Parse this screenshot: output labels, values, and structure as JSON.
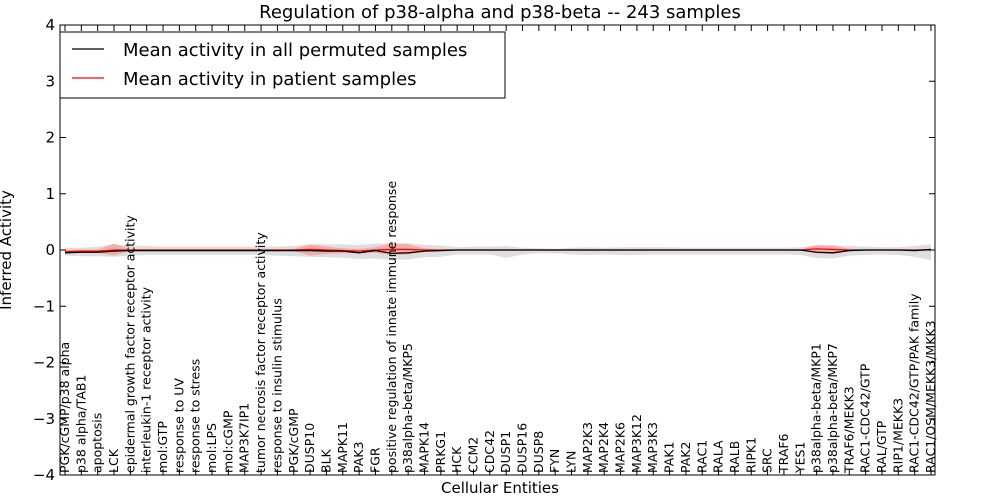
{
  "chart_data": {
    "type": "line",
    "title": "Regulation of p38-alpha and p38-beta -- 243 samples",
    "xlabel": "Cellular Entities",
    "ylabel": "Inferred Activity",
    "ylim": [
      -4,
      4
    ],
    "yticks": [
      -4,
      -3,
      -2,
      -1,
      0,
      1,
      2,
      3,
      4
    ],
    "ytick_labels": [
      "−4",
      "−3",
      "−2",
      "−1",
      "0",
      "1",
      "2",
      "3",
      "4"
    ],
    "grid": false,
    "legend_position": "top-left",
    "categories": [
      "PGK/cGMP/p38 alpha",
      "p38 alpha/TAB1",
      "apoptosis",
      "LCK",
      "epidermal growth factor receptor activity",
      "interleukin-1 receptor activity",
      "mol:GTP",
      "response to UV",
      "response to stress",
      "mol:LPS",
      "mol:cGMP",
      "MAP3K7IP1",
      "tumor necrosis factor receptor activity",
      "response to insulin stimulus",
      "PGK/cGMP",
      "DUSP10",
      "BLK",
      "MAPK11",
      "PAK3",
      "FGR",
      "positive regulation of innate immune response",
      "p38alpha-beta/MKP5",
      "MAPK14",
      "PRKG1",
      "HCK",
      "CCM2",
      "CDC42",
      "DUSP1",
      "DUSP16",
      "DUSP8",
      "FYN",
      "LYN",
      "MAP2K3",
      "MAP2K4",
      "MAP2K6",
      "MAP3K12",
      "MAP3K3",
      "PAK1",
      "PAK2",
      "RAC1",
      "RALA",
      "RALB",
      "RIPK1",
      "SRC",
      "TRAF6",
      "YES1",
      "p38alpha-beta/MKP1",
      "p38alpha-beta/MKP7",
      "TRAF6/MEKK3",
      "RAC1-CDC42/GTP",
      "RAL/GTP",
      "RIP1/MEKK3",
      "RAC1-CDC42/GTP/PAK family",
      "RAC1/OSM/MEKK3/MKK3"
    ],
    "series": [
      {
        "name": "Mean activity in all permuted samples",
        "color": "#000000",
        "band_color": "#d8d8d8",
        "values": [
          -0.05,
          -0.04,
          -0.04,
          -0.02,
          -0.01,
          -0.01,
          -0.01,
          -0.01,
          -0.01,
          -0.01,
          -0.01,
          -0.01,
          -0.01,
          -0.01,
          -0.01,
          -0.01,
          -0.02,
          -0.02,
          -0.05,
          -0.01,
          -0.06,
          -0.05,
          -0.02,
          -0.01,
          0,
          0,
          0,
          0,
          0,
          0,
          0,
          0,
          0,
          0,
          0,
          0,
          0,
          0,
          0,
          0,
          0,
          0,
          0,
          0,
          0,
          0,
          -0.04,
          -0.05,
          -0.01,
          0,
          0,
          0,
          -0.01,
          0.01
        ],
        "upper": [
          0.04,
          0.04,
          0.06,
          0.1,
          0.08,
          0.07,
          0.06,
          0.06,
          0.06,
          0.06,
          0.06,
          0.06,
          0.06,
          0.06,
          0.07,
          0.1,
          0.1,
          0.1,
          0.09,
          0.11,
          0.12,
          0.12,
          0.09,
          0.08,
          0.05,
          0.06,
          0.06,
          0.07,
          0.04,
          0.03,
          0.02,
          0.04,
          0.05,
          0.04,
          0.05,
          0.05,
          0.05,
          0.05,
          0.04,
          0.04,
          0.04,
          0.04,
          0.04,
          0.04,
          0.04,
          0.05,
          0.08,
          0.08,
          0.07,
          0.06,
          0.05,
          0.05,
          0.07,
          0.1
        ],
        "lower": [
          -0.1,
          -0.11,
          -0.11,
          -0.12,
          -0.1,
          -0.09,
          -0.09,
          -0.09,
          -0.09,
          -0.09,
          -0.09,
          -0.09,
          -0.09,
          -0.1,
          -0.11,
          -0.12,
          -0.13,
          -0.14,
          -0.16,
          -0.15,
          -0.18,
          -0.17,
          -0.13,
          -0.12,
          -0.08,
          -0.08,
          -0.08,
          -0.14,
          -0.08,
          -0.06,
          -0.06,
          -0.08,
          -0.09,
          -0.08,
          -0.09,
          -0.09,
          -0.08,
          -0.08,
          -0.08,
          -0.08,
          -0.08,
          -0.08,
          -0.08,
          -0.08,
          -0.08,
          -0.09,
          -0.14,
          -0.15,
          -0.1,
          -0.09,
          -0.08,
          -0.09,
          -0.12,
          -0.18
        ]
      },
      {
        "name": "Mean activity in patient samples",
        "color": "#ff0000",
        "band_color": "#f4a3a3",
        "values": [
          -0.03,
          -0.02,
          -0.02,
          0,
          0,
          0,
          0,
          0,
          0,
          0,
          0,
          0,
          0,
          0,
          0,
          0.01,
          0,
          -0.01,
          -0.02,
          0,
          0.01,
          0.01,
          0,
          0,
          0,
          0,
          0,
          0,
          0,
          0,
          0,
          0,
          0,
          0,
          0,
          0,
          0,
          0,
          0,
          0,
          0,
          0,
          0,
          0,
          0,
          0,
          0.02,
          0.01,
          0,
          0,
          0,
          0,
          0,
          0
        ],
        "upper": [
          0,
          0.01,
          0.01,
          0.11,
          0.02,
          0.01,
          0.01,
          0.01,
          0.01,
          0.01,
          0.01,
          0.01,
          0.01,
          0.01,
          0.02,
          0.1,
          0.06,
          0.03,
          0.02,
          0.05,
          0.12,
          0.1,
          0.03,
          0.01,
          0.01,
          0.01,
          0.01,
          0.01,
          0.01,
          0.01,
          0.01,
          0.01,
          0.01,
          0.01,
          0.01,
          0.01,
          0.01,
          0.01,
          0.01,
          0.01,
          0.01,
          0.01,
          0.01,
          0.01,
          0.01,
          0.01,
          0.09,
          0.08,
          0.02,
          0.01,
          0.01,
          0.01,
          0.01,
          0.01
        ],
        "lower": [
          -0.06,
          -0.05,
          -0.05,
          -0.1,
          -0.02,
          -0.01,
          -0.01,
          -0.01,
          -0.01,
          -0.01,
          -0.01,
          -0.01,
          -0.01,
          -0.01,
          -0.02,
          -0.1,
          -0.07,
          -0.06,
          -0.05,
          -0.05,
          -0.09,
          -0.08,
          -0.03,
          -0.01,
          -0.01,
          -0.01,
          -0.01,
          -0.01,
          -0.01,
          -0.01,
          -0.01,
          -0.01,
          -0.01,
          -0.01,
          -0.01,
          -0.01,
          -0.01,
          -0.01,
          -0.01,
          -0.01,
          -0.01,
          -0.01,
          -0.01,
          -0.01,
          -0.01,
          -0.01,
          -0.06,
          -0.07,
          -0.02,
          -0.01,
          -0.01,
          -0.01,
          -0.01,
          -0.01
        ]
      }
    ]
  }
}
